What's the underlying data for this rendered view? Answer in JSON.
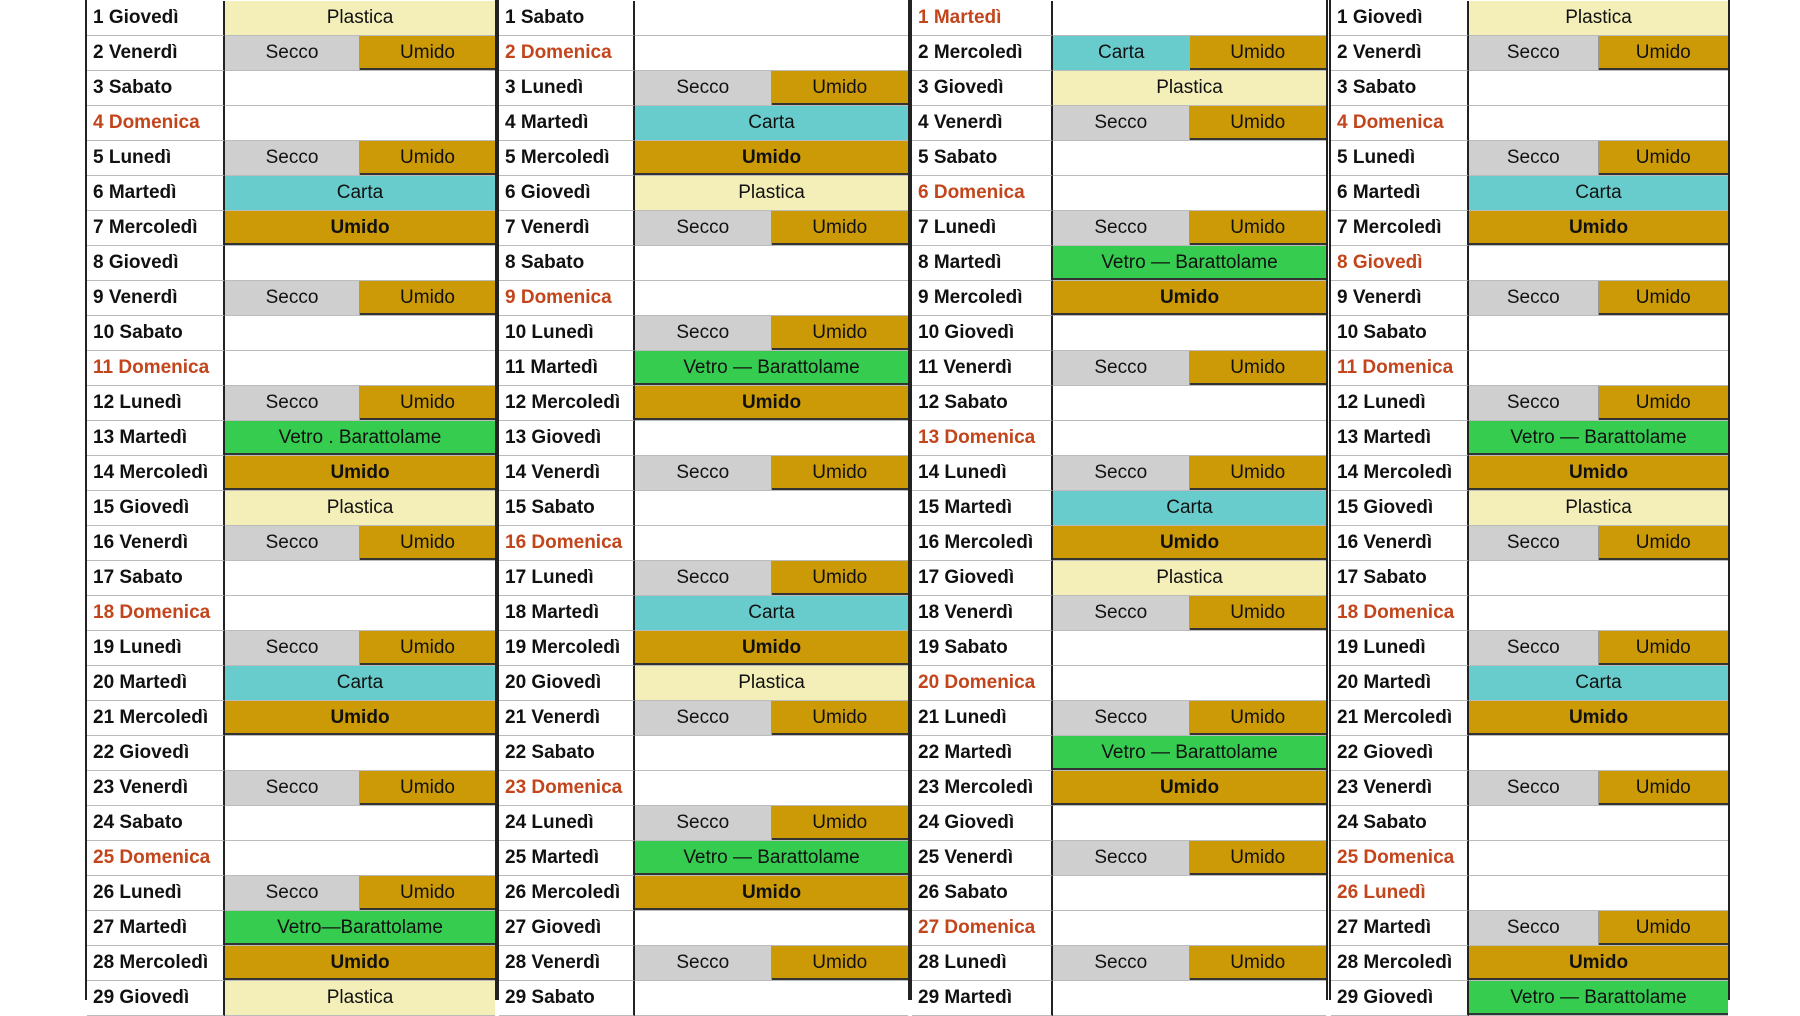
{
  "colors": {
    "holiday_text": "#c2451c",
    "secco": "#cfcfcf",
    "umido": "#cc9a06",
    "carta": "#68cccc",
    "plastica": "#f4efb8",
    "vetro": "#35cc4f"
  },
  "months": [
    {
      "days": [
        {
          "label": "1 Giovedì",
          "items": [
            {
              "t": "Plastica",
              "k": "plastica"
            }
          ]
        },
        {
          "label": "2 Venerdì",
          "items": [
            {
              "t": "Secco",
              "k": "secco"
            },
            {
              "t": "Umido",
              "k": "umido-half"
            }
          ]
        },
        {
          "label": "3 Sabato",
          "items": []
        },
        {
          "label": "4 Domenica",
          "holiday": true,
          "items": []
        },
        {
          "label": "5 Lunedì",
          "items": [
            {
              "t": "Secco",
              "k": "secco"
            },
            {
              "t": "Umido",
              "k": "umido-half"
            }
          ]
        },
        {
          "label": "6 Martedì",
          "items": [
            {
              "t": "Carta",
              "k": "carta"
            }
          ]
        },
        {
          "label": "7 Mercoledì",
          "items": [
            {
              "t": "Umido",
              "k": "umido"
            }
          ]
        },
        {
          "label": "8 Giovedì",
          "items": []
        },
        {
          "label": "9 Venerdì",
          "items": [
            {
              "t": "Secco",
              "k": "secco"
            },
            {
              "t": "Umido",
              "k": "umido-half"
            }
          ]
        },
        {
          "label": "10 Sabato",
          "items": []
        },
        {
          "label": "11 Domenica",
          "holiday": true,
          "items": []
        },
        {
          "label": "12 Lunedì",
          "items": [
            {
              "t": "Secco",
              "k": "secco"
            },
            {
              "t": "Umido",
              "k": "umido-half"
            }
          ]
        },
        {
          "label": "13 Martedì",
          "items": [
            {
              "t": "Vetro . Barattolame",
              "k": "vetro"
            }
          ]
        },
        {
          "label": "14 Mercoledì",
          "items": [
            {
              "t": "Umido",
              "k": "umido"
            }
          ]
        },
        {
          "label": "15 Giovedì",
          "items": [
            {
              "t": "Plastica",
              "k": "plastica"
            }
          ]
        },
        {
          "label": "16 Venerdì",
          "items": [
            {
              "t": "Secco",
              "k": "secco"
            },
            {
              "t": "Umido",
              "k": "umido-half"
            }
          ]
        },
        {
          "label": "17 Sabato",
          "items": []
        },
        {
          "label": "18 Domenica",
          "holiday": true,
          "items": []
        },
        {
          "label": "19 Lunedì",
          "items": [
            {
              "t": "Secco",
              "k": "secco"
            },
            {
              "t": "Umido",
              "k": "umido-half"
            }
          ]
        },
        {
          "label": "20 Martedì",
          "items": [
            {
              "t": "Carta",
              "k": "carta"
            }
          ]
        },
        {
          "label": "21 Mercoledì",
          "items": [
            {
              "t": "Umido",
              "k": "umido"
            }
          ]
        },
        {
          "label": "22 Giovedì",
          "items": []
        },
        {
          "label": "23 Venerdì",
          "items": [
            {
              "t": "Secco",
              "k": "secco"
            },
            {
              "t": "Umido",
              "k": "umido-half"
            }
          ]
        },
        {
          "label": "24 Sabato",
          "items": []
        },
        {
          "label": "25 Domenica",
          "holiday": true,
          "items": []
        },
        {
          "label": "26 Lunedì",
          "items": [
            {
              "t": "Secco",
              "k": "secco"
            },
            {
              "t": "Umido",
              "k": "umido-half"
            }
          ]
        },
        {
          "label": "27 Martedì",
          "items": [
            {
              "t": "Vetro—Barattolame",
              "k": "vetro"
            }
          ]
        },
        {
          "label": "28 Mercoledì",
          "items": [
            {
              "t": "Umido",
              "k": "umido"
            }
          ]
        },
        {
          "label": "29 Giovedì",
          "items": [
            {
              "t": "Plastica",
              "k": "plastica"
            }
          ]
        }
      ]
    },
    {
      "days": [
        {
          "label": "1 Sabato",
          "items": []
        },
        {
          "label": "2 Domenica",
          "holiday": true,
          "items": []
        },
        {
          "label": "3 Lunedì",
          "items": [
            {
              "t": "Secco",
              "k": "secco"
            },
            {
              "t": "Umido",
              "k": "umido-half"
            }
          ]
        },
        {
          "label": "4 Martedì",
          "items": [
            {
              "t": "Carta",
              "k": "carta"
            }
          ]
        },
        {
          "label": "5 Mercoledì",
          "items": [
            {
              "t": "Umido",
              "k": "umido"
            }
          ]
        },
        {
          "label": "6 Giovedì",
          "items": [
            {
              "t": "Plastica",
              "k": "plastica"
            }
          ]
        },
        {
          "label": "7 Venerdì",
          "items": [
            {
              "t": "Secco",
              "k": "secco"
            },
            {
              "t": "Umido",
              "k": "umido-half"
            }
          ]
        },
        {
          "label": "8 Sabato",
          "items": []
        },
        {
          "label": "9 Domenica",
          "holiday": true,
          "items": []
        },
        {
          "label": "10 Lunedì",
          "items": [
            {
              "t": "Secco",
              "k": "secco"
            },
            {
              "t": "Umido",
              "k": "umido-half"
            }
          ]
        },
        {
          "label": "11 Martedì",
          "items": [
            {
              "t": "Vetro — Barattolame",
              "k": "vetro"
            }
          ]
        },
        {
          "label": "12 Mercoledì",
          "items": [
            {
              "t": "Umido",
              "k": "umido"
            }
          ]
        },
        {
          "label": "13 Giovedì",
          "items": []
        },
        {
          "label": "14 Venerdì",
          "items": [
            {
              "t": "Secco",
              "k": "secco"
            },
            {
              "t": "Umido",
              "k": "umido-half"
            }
          ]
        },
        {
          "label": "15 Sabato",
          "items": []
        },
        {
          "label": "16 Domenica",
          "holiday": true,
          "items": []
        },
        {
          "label": "17 Lunedì",
          "items": [
            {
              "t": "Secco",
              "k": "secco"
            },
            {
              "t": "Umido",
              "k": "umido-half"
            }
          ]
        },
        {
          "label": "18 Martedì",
          "items": [
            {
              "t": "Carta",
              "k": "carta"
            }
          ]
        },
        {
          "label": "19 Mercoledì",
          "items": [
            {
              "t": "Umido",
              "k": "umido"
            }
          ]
        },
        {
          "label": "20 Giovedì",
          "items": [
            {
              "t": "Plastica",
              "k": "plastica"
            }
          ]
        },
        {
          "label": "21 Venerdì",
          "items": [
            {
              "t": "Secco",
              "k": "secco"
            },
            {
              "t": "Umido",
              "k": "umido-half"
            }
          ]
        },
        {
          "label": "22 Sabato",
          "items": []
        },
        {
          "label": "23 Domenica",
          "holiday": true,
          "items": []
        },
        {
          "label": "24 Lunedì",
          "items": [
            {
              "t": "Secco",
              "k": "secco"
            },
            {
              "t": "Umido",
              "k": "umido-half"
            }
          ]
        },
        {
          "label": "25 Martedì",
          "items": [
            {
              "t": "Vetro — Barattolame",
              "k": "vetro"
            }
          ]
        },
        {
          "label": "26 Mercoledì",
          "items": [
            {
              "t": "Umido",
              "k": "umido"
            }
          ]
        },
        {
          "label": "27 Giovedì",
          "items": []
        },
        {
          "label": "28 Venerdì",
          "items": [
            {
              "t": "Secco",
              "k": "secco"
            },
            {
              "t": "Umido",
              "k": "umido-half"
            }
          ]
        },
        {
          "label": "29 Sabato",
          "items": []
        }
      ]
    },
    {
      "days": [
        {
          "label": "1 Martedì",
          "holiday": true,
          "items": []
        },
        {
          "label": "2  Mercoledì",
          "items": [
            {
              "t": "Carta",
              "k": "carta"
            },
            {
              "t": "Umido",
              "k": "umido-half"
            }
          ]
        },
        {
          "label": "3 Giovedì",
          "items": [
            {
              "t": "Plastica",
              "k": "plastica"
            }
          ]
        },
        {
          "label": "4 Venerdì",
          "items": [
            {
              "t": "Secco",
              "k": "secco"
            },
            {
              "t": "Umido",
              "k": "umido-half"
            }
          ]
        },
        {
          "label": "5 Sabato",
          "items": []
        },
        {
          "label": "6 Domenica",
          "holiday": true,
          "items": []
        },
        {
          "label": "7 Lunedì",
          "items": [
            {
              "t": "Secco",
              "k": "secco"
            },
            {
              "t": "Umido",
              "k": "umido-half"
            }
          ]
        },
        {
          "label": "8  Martedì",
          "items": [
            {
              "t": "Vetro — Barattolame",
              "k": "vetro"
            }
          ]
        },
        {
          "label": "9 Mercoledì",
          "items": [
            {
              "t": "Umido",
              "k": "umido"
            }
          ]
        },
        {
          "label": "10 Giovedì",
          "items": []
        },
        {
          "label": "11 Venerdì",
          "items": [
            {
              "t": "Secco",
              "k": "secco"
            },
            {
              "t": "Umido",
              "k": "umido-half"
            }
          ]
        },
        {
          "label": "12 Sabato",
          "items": []
        },
        {
          "label": "13  Domenica",
          "holiday": true,
          "items": []
        },
        {
          "label": "14 Lunedì",
          "items": [
            {
              "t": "Secco",
              "k": "secco"
            },
            {
              "t": "Umido",
              "k": "umido-half"
            }
          ]
        },
        {
          "label": "15 Martedì",
          "items": [
            {
              "t": "Carta",
              "k": "carta"
            }
          ]
        },
        {
          "label": "16  Mercoledì",
          "items": [
            {
              "t": "Umido",
              "k": "umido"
            }
          ]
        },
        {
          "label": "17 Giovedì",
          "items": [
            {
              "t": "Plastica",
              "k": "plastica"
            }
          ]
        },
        {
          "label": "18 Venerdì",
          "items": [
            {
              "t": "Secco",
              "k": "secco"
            },
            {
              "t": "Umido",
              "k": "umido-half"
            }
          ]
        },
        {
          "label": "19 Sabato",
          "items": []
        },
        {
          "label": "20 Domenica",
          "holiday": true,
          "items": []
        },
        {
          "label": "21 Lunedì",
          "items": [
            {
              "t": "Secco",
              "k": "secco"
            },
            {
              "t": "Umido",
              "k": "umido-half"
            }
          ]
        },
        {
          "label": "22  Martedì",
          "items": [
            {
              "t": "Vetro — Barattolame",
              "k": "vetro"
            }
          ]
        },
        {
          "label": "23  Mercoledì",
          "items": [
            {
              "t": "Umido",
              "k": "umido"
            }
          ]
        },
        {
          "label": "24  Giovedì",
          "items": []
        },
        {
          "label": "25  Venerdì",
          "items": [
            {
              "t": "Secco",
              "k": "secco"
            },
            {
              "t": "Umido",
              "k": "umido-half"
            }
          ]
        },
        {
          "label": "26 Sabato",
          "items": []
        },
        {
          "label": "27 Domenica",
          "holiday": true,
          "items": []
        },
        {
          "label": "28 Lunedì",
          "items": [
            {
              "t": "Secco",
              "k": "secco"
            },
            {
              "t": "Umido",
              "k": "umido-half"
            }
          ]
        },
        {
          "label": "29 Martedì",
          "items": []
        }
      ]
    },
    {
      "days": [
        {
          "label": "1 Giovedì",
          "items": [
            {
              "t": "Plastica",
              "k": "plastica"
            }
          ]
        },
        {
          "label": "2 Venerdì",
          "items": [
            {
              "t": "Secco",
              "k": "secco"
            },
            {
              "t": "Umido",
              "k": "umido-half"
            }
          ]
        },
        {
          "label": "3 Sabato",
          "items": []
        },
        {
          "label": "4 Domenica",
          "holiday": true,
          "items": []
        },
        {
          "label": "5 Lunedì",
          "items": [
            {
              "t": "Secco",
              "k": "secco"
            },
            {
              "t": "Umido",
              "k": "umido-half"
            }
          ]
        },
        {
          "label": "6 Martedì",
          "items": [
            {
              "t": "Carta",
              "k": "carta"
            }
          ]
        },
        {
          "label": "7 Mercoledì",
          "items": [
            {
              "t": "Umido",
              "k": "umido"
            }
          ]
        },
        {
          "label": "8 Giovedì",
          "holiday": true,
          "items": []
        },
        {
          "label": "9 Venerdì",
          "items": [
            {
              "t": "Secco",
              "k": "secco"
            },
            {
              "t": "Umido",
              "k": "umido-half"
            }
          ]
        },
        {
          "label": "10 Sabato",
          "items": []
        },
        {
          "label": "11 Domenica",
          "holiday": true,
          "items": []
        },
        {
          "label": "12 Lunedì",
          "items": [
            {
              "t": "Secco",
              "k": "secco"
            },
            {
              "t": "Umido",
              "k": "umido-half"
            }
          ]
        },
        {
          "label": "13 Martedì",
          "items": [
            {
              "t": "Vetro — Barattolame",
              "k": "vetro"
            }
          ]
        },
        {
          "label": "14 Mercoledì",
          "items": [
            {
              "t": "Umido",
              "k": "umido"
            }
          ]
        },
        {
          "label": "15 Giovedì",
          "items": [
            {
              "t": "Plastica",
              "k": "plastica"
            }
          ]
        },
        {
          "label": "16 Venerdì",
          "items": [
            {
              "t": "Secco",
              "k": "secco"
            },
            {
              "t": "Umido",
              "k": "umido-half"
            }
          ]
        },
        {
          "label": "17 Sabato",
          "items": []
        },
        {
          "label": "18 Domenica",
          "holiday": true,
          "items": []
        },
        {
          "label": "19 Lunedì",
          "items": [
            {
              "t": "Secco",
              "k": "secco"
            },
            {
              "t": "Umido",
              "k": "umido-half"
            }
          ]
        },
        {
          "label": "20 Martedì",
          "items": [
            {
              "t": "Carta",
              "k": "carta"
            }
          ]
        },
        {
          "label": "21 Mercoledì",
          "items": [
            {
              "t": "Umido",
              "k": "umido"
            }
          ]
        },
        {
          "label": "22 Giovedì",
          "items": []
        },
        {
          "label": "23 Venerdì",
          "items": [
            {
              "t": "Secco",
              "k": "secco"
            },
            {
              "t": "Umido",
              "k": "umido-half"
            }
          ]
        },
        {
          "label": "24 Sabato",
          "items": []
        },
        {
          "label": "25 Domenica",
          "holiday": true,
          "items": []
        },
        {
          "label": "26 Lunedì",
          "holiday": true,
          "items": []
        },
        {
          "label": "27 Martedì",
          "items": [
            {
              "t": "Secco",
              "k": "secco"
            },
            {
              "t": "Umido",
              "k": "umido-half"
            }
          ]
        },
        {
          "label": "28 Mercoledì",
          "items": [
            {
              "t": "Umido",
              "k": "umido"
            }
          ]
        },
        {
          "label": "29 Giovedì",
          "items": [
            {
              "t": "Vetro — Barattolame",
              "k": "vetro"
            }
          ]
        }
      ]
    }
  ]
}
